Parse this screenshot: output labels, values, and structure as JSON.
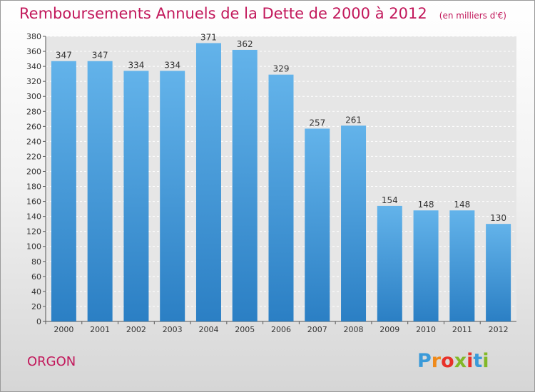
{
  "chart_data": {
    "type": "bar",
    "title": "Remboursements Annuels de la Dette de 2000 à 2012",
    "unit_label": "(en milliers d'€)",
    "categories": [
      "2000",
      "2001",
      "2002",
      "2003",
      "2004",
      "2005",
      "2006",
      "2007",
      "2008",
      "2009",
      "2010",
      "2011",
      "2012"
    ],
    "values": [
      347,
      347,
      334,
      334,
      371,
      362,
      329,
      257,
      261,
      154,
      148,
      148,
      130
    ],
    "ylim": [
      0,
      380
    ],
    "ytick_step": 20,
    "grid": true,
    "bar_color_top": "#63b3ea",
    "bar_color_bottom": "#2b7fc4"
  },
  "location": "ORGON",
  "logo": {
    "letters": [
      "P",
      "r",
      "o",
      "x",
      "i",
      "t",
      "i"
    ],
    "colors": [
      "#3a9ad9",
      "#ef8a1a",
      "#e8312a",
      "#82b828",
      "#e8312a",
      "#3a9ad9",
      "#82b828"
    ]
  },
  "colors": {
    "accent": "#c2185b"
  }
}
